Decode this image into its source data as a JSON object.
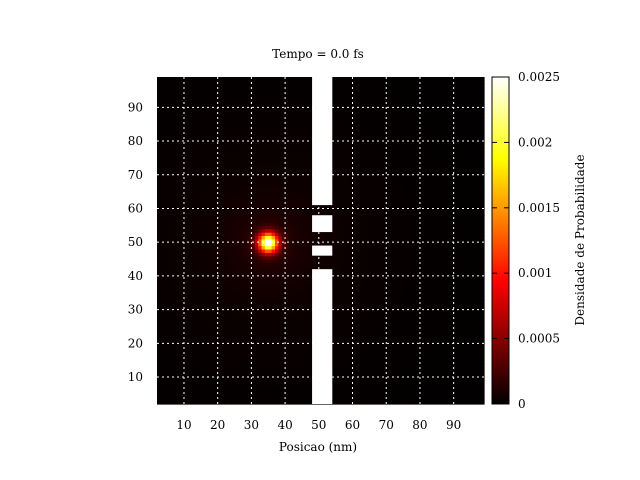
{
  "chart_data": {
    "type": "heatmap",
    "title": "Tempo = 0.0 fs",
    "xlabel": "Posicao (nm)",
    "ylabel": "",
    "colorbar_label": "Densidade de Probabilidade",
    "xlim": [
      2,
      99
    ],
    "ylim": [
      2,
      99
    ],
    "x_ticks": [
      10,
      20,
      30,
      40,
      50,
      60,
      70,
      80,
      90
    ],
    "y_ticks": [
      10,
      20,
      30,
      40,
      50,
      60,
      70,
      80,
      90
    ],
    "x_tick_labels": [
      "10",
      "20",
      "30",
      "40",
      "50",
      "60",
      "70",
      "80",
      "90"
    ],
    "y_tick_labels": [
      "10",
      "20",
      "30",
      "40",
      "50",
      "60",
      "70",
      "80",
      "90"
    ],
    "color_range": [
      0,
      0.0025
    ],
    "colorbar_ticks": [
      0,
      0.0005,
      0.001,
      0.0015,
      0.002,
      0.0025
    ],
    "colorbar_tick_labels": [
      "0",
      "0.0005",
      "0.001",
      "0.0015",
      "0.002",
      "0.0025"
    ],
    "colormap": "hot",
    "grid": true,
    "wave_packet": {
      "center_x": 35,
      "center_y": 50,
      "peak_density": 0.0024,
      "width_nm": 2
    },
    "barrier": {
      "x_range": [
        48,
        54
      ],
      "color": "#ffffff",
      "segments_y": [
        [
          2,
          42
        ],
        [
          46,
          49
        ],
        [
          53,
          58
        ],
        [
          61,
          99
        ]
      ]
    }
  }
}
